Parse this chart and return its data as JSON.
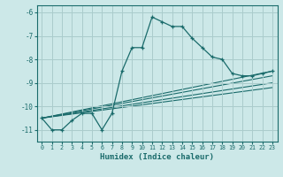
{
  "xlabel": "Humidex (Indice chaleur)",
  "background_color": "#cce8e8",
  "grid_color": "#aacccc",
  "line_color": "#1a6b6b",
  "xlim": [
    -0.5,
    23.5
  ],
  "ylim": [
    -11.5,
    -5.7
  ],
  "yticks": [
    -11,
    -10,
    -9,
    -8,
    -7,
    -6
  ],
  "xticks": [
    0,
    1,
    2,
    3,
    4,
    5,
    6,
    7,
    8,
    9,
    10,
    11,
    12,
    13,
    14,
    15,
    16,
    17,
    18,
    19,
    20,
    21,
    22,
    23
  ],
  "main_x": [
    0,
    1,
    2,
    3,
    4,
    5,
    6,
    7,
    8,
    9,
    10,
    11,
    12,
    13,
    14,
    15,
    16,
    17,
    18,
    19,
    20,
    21,
    22,
    23
  ],
  "main_y": [
    -10.5,
    -11.0,
    -11.0,
    -10.6,
    -10.3,
    -10.3,
    -11.0,
    -10.3,
    -8.5,
    -7.5,
    -7.5,
    -6.2,
    -6.4,
    -6.6,
    -6.6,
    -7.1,
    -7.5,
    -7.9,
    -8.0,
    -8.6,
    -8.7,
    -8.7,
    -8.6,
    -8.5
  ],
  "straight_lines": [
    {
      "x": [
        0,
        23
      ],
      "y": [
        -10.5,
        -8.5
      ]
    },
    {
      "x": [
        0,
        23
      ],
      "y": [
        -10.5,
        -8.7
      ]
    },
    {
      "x": [
        0,
        23
      ],
      "y": [
        -10.5,
        -9.0
      ]
    },
    {
      "x": [
        0,
        23
      ],
      "y": [
        -10.5,
        -9.2
      ]
    }
  ]
}
